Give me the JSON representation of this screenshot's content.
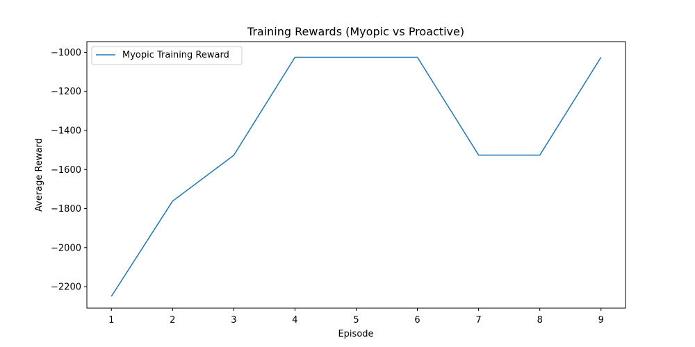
{
  "chart_data": {
    "type": "line",
    "title": "Training Rewards (Myopic vs Proactive)",
    "xlabel": "Episode",
    "ylabel": "Average Reward",
    "x": [
      1,
      2,
      3,
      4,
      5,
      6,
      7,
      8,
      9
    ],
    "xticks": [
      1,
      2,
      3,
      4,
      5,
      6,
      7,
      8,
      9
    ],
    "yticks": [
      -2200,
      -2000,
      -1800,
      -1600,
      -1400,
      -1200,
      -1000
    ],
    "xlim": [
      0.6,
      9.4
    ],
    "ylim": [
      -2310,
      -945
    ],
    "grid": false,
    "legend_position": "upper-left",
    "series": [
      {
        "name": "Myopic Training Reward",
        "color": "#1f77b4",
        "values": [
          -2250,
          -1762,
          -1527,
          -1025,
          -1025,
          -1025,
          -1526,
          -1526,
          -1025
        ]
      }
    ]
  }
}
